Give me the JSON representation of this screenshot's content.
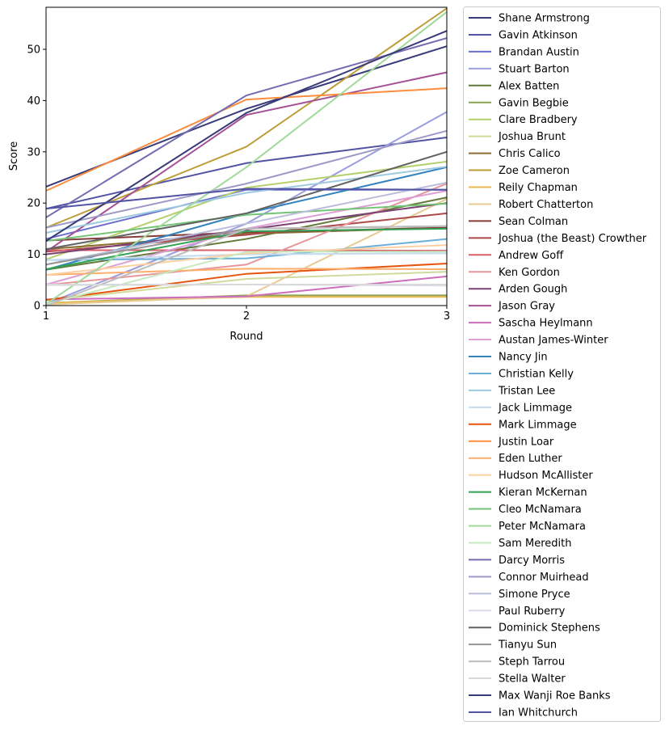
{
  "chart_data": {
    "type": "line",
    "xlabel": "Round",
    "ylabel": "Score",
    "x": [
      1,
      2,
      3
    ],
    "xlim": [
      1,
      3
    ],
    "ylim": [
      0,
      58.2
    ],
    "xticks": [
      "1",
      "2",
      "3"
    ],
    "yticks": [
      "0",
      "10",
      "20",
      "30",
      "40",
      "50"
    ],
    "grid": false,
    "legend_placement": "outside-right",
    "series": [
      {
        "name": "Shane Armstrong",
        "color": "#393b79",
        "values": [
          23.2,
          38.4,
          50.6
        ]
      },
      {
        "name": "Gavin Atkinson",
        "color": "#5254a3",
        "values": [
          18.9,
          27.8,
          32.8
        ]
      },
      {
        "name": "Brandan Austin",
        "color": "#6b6ecf",
        "values": [
          13.0,
          22.6,
          22.6
        ]
      },
      {
        "name": "Stuart Barton",
        "color": "#9c9ede",
        "values": [
          0.3,
          16.0,
          37.8
        ]
      },
      {
        "name": "Alex Batten",
        "color": "#637939",
        "values": [
          7.0,
          13.0,
          21.1
        ]
      },
      {
        "name": "Gavin Begbie",
        "color": "#8ca252",
        "values": [
          0.5,
          2.0,
          2.0
        ]
      },
      {
        "name": "Clare Bradbery",
        "color": "#b5cf6b",
        "values": [
          9.0,
          23.0,
          28.1
        ]
      },
      {
        "name": "Joshua Brunt",
        "color": "#cedb9c",
        "values": [
          1.0,
          5.2,
          6.6
        ]
      },
      {
        "name": "Chris Calico",
        "color": "#8c6d31",
        "values": [
          11.0,
          14.0,
          15.2
        ]
      },
      {
        "name": "Zoe Cameron",
        "color": "#bd9e39",
        "values": [
          15.2,
          31.0,
          58.0
        ]
      },
      {
        "name": "Reily Chapman",
        "color": "#e7ba52",
        "values": [
          0.5,
          1.7,
          1.7
        ]
      },
      {
        "name": "Robert Chatterton",
        "color": "#e7cb94",
        "values": [
          0.2,
          1.8,
          20.8
        ]
      },
      {
        "name": "Sean Colman",
        "color": "#843c39",
        "values": [
          12.7,
          14.3,
          15.2
        ]
      },
      {
        "name": "Joshua (the Beast) Crowther",
        "color": "#ad494a",
        "values": [
          10.5,
          13.8,
          18.0
        ]
      },
      {
        "name": "Andrew Goff",
        "color": "#d6616b",
        "values": [
          10.8,
          10.8,
          10.7
        ]
      },
      {
        "name": "Ken Gordon",
        "color": "#e7969c",
        "values": [
          4.0,
          8.0,
          23.8
        ]
      },
      {
        "name": "Arden Gough",
        "color": "#7b4173",
        "values": [
          10.0,
          14.8,
          20.0
        ]
      },
      {
        "name": "Jason Gray",
        "color": "#a55194",
        "values": [
          10.5,
          37.2,
          45.5
        ]
      },
      {
        "name": "Sascha Heylmann",
        "color": "#ce6dbd",
        "values": [
          1.2,
          1.8,
          5.7
        ]
      },
      {
        "name": "Austan James-Winter",
        "color": "#de9ed6",
        "values": [
          4.1,
          15.0,
          22.4
        ]
      },
      {
        "name": "Nancy Jin",
        "color": "#3182bd",
        "values": [
          7.0,
          18.0,
          27.0
        ]
      },
      {
        "name": "Christian Kelly",
        "color": "#6baed6",
        "values": [
          8.9,
          9.2,
          13.0
        ]
      },
      {
        "name": "Tristan Lee",
        "color": "#9ecae1",
        "values": [
          14.2,
          22.0,
          27.1
        ]
      },
      {
        "name": "Jack Limmage",
        "color": "#c6dbef",
        "values": [
          8.9,
          10.0,
          10.2
        ]
      },
      {
        "name": "Mark Limmage",
        "color": "#e6550d",
        "values": [
          1.1,
          6.2,
          8.2
        ]
      },
      {
        "name": "Justin Loar",
        "color": "#fd8d3c",
        "values": [
          22.4,
          40.2,
          42.4
        ]
      },
      {
        "name": "Eden Luther",
        "color": "#fdae6b",
        "values": [
          6.0,
          7.2,
          7.1
        ]
      },
      {
        "name": "Hudson McAllister",
        "color": "#fdd0a2",
        "values": [
          6.0,
          10.2,
          11.8
        ]
      },
      {
        "name": "Kieran McKernan",
        "color": "#31a354",
        "values": [
          7.1,
          14.5,
          15.0
        ]
      },
      {
        "name": "Cleo McNamara",
        "color": "#74c476",
        "values": [
          12.6,
          17.7,
          19.9
        ]
      },
      {
        "name": "Peter McNamara",
        "color": "#a1d99b",
        "values": [
          0.3,
          27.0,
          57.3
        ]
      },
      {
        "name": "Sam Meredith",
        "color": "#c7e9c0",
        "values": [
          0.3,
          10.5,
          10.5
        ]
      },
      {
        "name": "Darcy Morris",
        "color": "#756bb1",
        "values": [
          17.2,
          41.0,
          52.2
        ]
      },
      {
        "name": "Connor Muirhead",
        "color": "#9e9ac8",
        "values": [
          15.2,
          23.8,
          34.1
        ]
      },
      {
        "name": "Simone Pryce",
        "color": "#bcbddc",
        "values": [
          8.0,
          16.0,
          24.0
        ]
      },
      {
        "name": "Paul Ruberry",
        "color": "#dadaeb",
        "values": [
          4.1,
          4.1,
          3.9
        ]
      },
      {
        "name": "Dominick Stephens",
        "color": "#636363",
        "values": [
          11.0,
          18.0,
          30.0
        ]
      },
      {
        "name": "Tianyu Sun",
        "color": "#969696",
        "values": [
          8.0,
          15.0,
          15.5
        ]
      },
      {
        "name": "Steph Tarrou",
        "color": "#bdbdbd",
        "values": [
          0.0,
          15.0,
          15.5
        ]
      },
      {
        "name": "Stella Walter",
        "color": "#d9d9d9",
        "values": [
          4.0,
          4.1,
          4.1
        ]
      },
      {
        "name": "Max Wanji Roe Banks",
        "color": "#393b79",
        "values": [
          12.6,
          37.6,
          53.6
        ]
      },
      {
        "name": "Ian Whitchurch",
        "color": "#5254a3",
        "values": [
          18.9,
          22.8,
          22.6
        ]
      }
    ]
  }
}
